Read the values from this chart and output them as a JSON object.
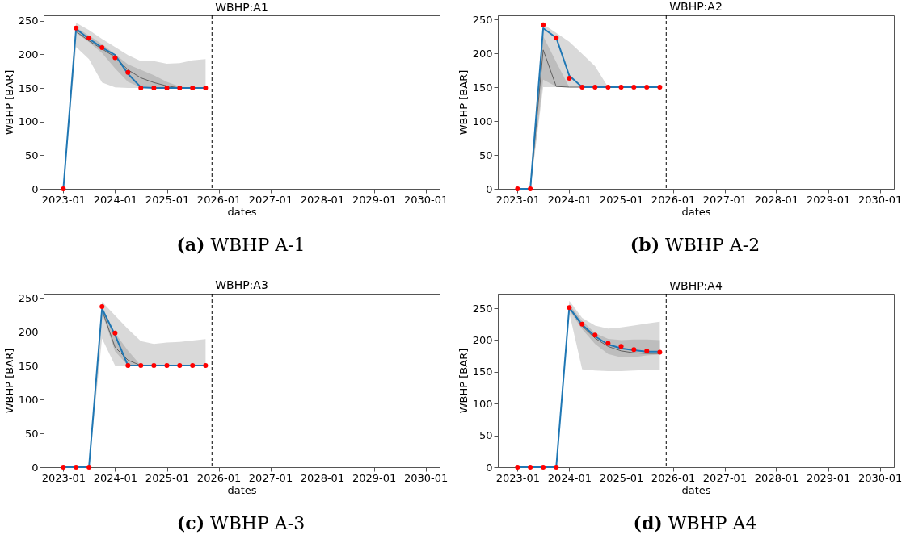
{
  "chart_data": [
    {
      "type": "line",
      "title": "WBHP:A1",
      "xlabel": "dates",
      "ylabel": "WBHP [BAR]",
      "annotations": [
        "(a) WBHP A-1"
      ],
      "x": [
        "2023-01",
        "2023-04",
        "2023-07",
        "2023-10",
        "2024-01",
        "2024-04",
        "2024-07",
        "2024-10",
        "2025-01",
        "2025-04",
        "2025-07",
        "2025-10"
      ],
      "xlim": [
        "2022-08-15",
        "2030-04-10"
      ],
      "xticks": [
        "2023-01",
        "2024-01",
        "2025-01",
        "2026-01",
        "2027-01",
        "2028-01",
        "2029-01",
        "2030-01"
      ],
      "ylim": [
        0,
        258
      ],
      "yticks": [
        0,
        50,
        100,
        150,
        200,
        250
      ],
      "ref_lines": [
        {
          "axis": "x",
          "value": "2025-11-15",
          "color": "#000000",
          "line_style": "dashed"
        }
      ],
      "series": [
        {
          "type": "line",
          "color": "#606060",
          "values": [
            null,
            234,
            220,
            208,
            196,
            177,
            165,
            158,
            153,
            150,
            150,
            150
          ],
          "lower": [
            0,
            232,
            218,
            202,
            179,
            159,
            151,
            150,
            150,
            150,
            150,
            150
          ],
          "upper": [
            0,
            240,
            228,
            215,
            200,
            185,
            177,
            169,
            159,
            152,
            150,
            150
          ]
        },
        {
          "type": "line",
          "color": "#1f77b4",
          "values": [
            0,
            238,
            223,
            210,
            199,
            171,
            151,
            150,
            150,
            150,
            150,
            150
          ],
          "lower": [
            0,
            211,
            193,
            158,
            151,
            150,
            150,
            150,
            150,
            150,
            150,
            150
          ],
          "upper": [
            0,
            247,
            236,
            223,
            211,
            199,
            190,
            190,
            186,
            187,
            191,
            193
          ]
        },
        {
          "type": "scatter",
          "color": "#ff0000",
          "marker": "circle",
          "values": [
            0,
            239,
            224,
            210,
            195,
            173,
            150,
            150,
            150,
            150,
            150,
            150
          ]
        }
      ]
    },
    {
      "type": "line",
      "title": "WBHP:A2",
      "xlabel": "dates",
      "ylabel": "WBHP [BAR]",
      "annotations": [
        "(b) WBHP A-2"
      ],
      "x": [
        "2023-01",
        "2023-04",
        "2023-07",
        "2023-10",
        "2024-01",
        "2024-04",
        "2024-07",
        "2024-10",
        "2025-01",
        "2025-04",
        "2025-07",
        "2025-10"
      ],
      "xlim": [
        "2022-08-15",
        "2030-04-10"
      ],
      "xticks": [
        "2023-01",
        "2024-01",
        "2025-01",
        "2026-01",
        "2027-01",
        "2028-01",
        "2029-01",
        "2030-01"
      ],
      "ylim": [
        0,
        256
      ],
      "yticks": [
        0,
        50,
        100,
        150,
        200,
        250
      ],
      "ref_lines": [
        {
          "axis": "x",
          "value": "2025-11-15",
          "color": "#000000",
          "line_style": "dashed"
        }
      ],
      "series": [
        {
          "type": "line",
          "color": "#606060",
          "values": [
            null,
            0,
            205,
            151,
            150,
            150,
            150,
            150,
            150,
            150,
            null,
            null
          ],
          "lower": [
            null,
            0,
            161,
            151,
            150,
            150,
            150,
            150,
            150,
            150,
            150,
            150
          ],
          "upper": [
            null,
            0,
            225,
            187,
            150,
            150,
            150,
            150,
            150,
            150,
            150,
            150
          ]
        },
        {
          "type": "line",
          "color": "#1f77b4",
          "values": [
            0,
            0,
            237,
            223,
            167,
            150,
            150,
            150,
            150,
            150,
            150,
            150
          ],
          "lower": [
            0,
            0,
            150,
            150,
            150,
            150,
            150,
            150,
            150,
            150,
            150,
            150
          ],
          "upper": [
            0,
            0,
            243,
            230,
            217,
            199,
            181,
            150,
            150,
            150,
            150,
            150
          ]
        },
        {
          "type": "scatter",
          "color": "#ff0000",
          "marker": "circle",
          "values": [
            0,
            0,
            242,
            223,
            163,
            150,
            150,
            150,
            150,
            150,
            150,
            150
          ]
        }
      ]
    },
    {
      "type": "line",
      "title": "WBHP:A3",
      "xlabel": "dates",
      "ylabel": "WBHP [BAR]",
      "annotations": [
        "(c) WBHP A-3"
      ],
      "x": [
        "2023-01",
        "2023-04",
        "2023-07",
        "2023-10",
        "2024-01",
        "2024-04",
        "2024-07",
        "2024-10",
        "2025-01",
        "2025-04",
        "2025-07",
        "2025-10"
      ],
      "xlim": [
        "2022-08-15",
        "2030-04-10"
      ],
      "xticks": [
        "2023-01",
        "2024-01",
        "2025-01",
        "2026-01",
        "2027-01",
        "2028-01",
        "2029-01",
        "2030-01"
      ],
      "ylim": [
        0,
        256
      ],
      "yticks": [
        0,
        50,
        100,
        150,
        200,
        250
      ],
      "ref_lines": [
        {
          "axis": "x",
          "value": "2025-11-15",
          "color": "#000000",
          "line_style": "dashed"
        }
      ],
      "series": [
        {
          "type": "line",
          "color": "#606060",
          "values": [
            null,
            null,
            null,
            232,
            177,
            158,
            150,
            150,
            150,
            150,
            null,
            null
          ],
          "lower": [
            null,
            null,
            null,
            228,
            171,
            150,
            150,
            150,
            150,
            150,
            150,
            150
          ],
          "upper": [
            null,
            null,
            null,
            233,
            198,
            172,
            150,
            150,
            150,
            150,
            150,
            150
          ]
        },
        {
          "type": "line",
          "color": "#1f77b4",
          "values": [
            0,
            0,
            0,
            234,
            195,
            150,
            150,
            150,
            150,
            150,
            150,
            150
          ],
          "lower": [
            0,
            0,
            0,
            190,
            150,
            150,
            150,
            150,
            150,
            150,
            150,
            150
          ],
          "upper": [
            0,
            0,
            0,
            244,
            224,
            204,
            186,
            182,
            184,
            185,
            187,
            189
          ]
        },
        {
          "type": "scatter",
          "color": "#ff0000",
          "marker": "circle",
          "values": [
            0,
            0,
            0,
            237,
            198,
            150,
            150,
            150,
            150,
            150,
            150,
            150
          ]
        }
      ]
    },
    {
      "type": "line",
      "title": "WBHP:A4",
      "xlabel": "dates",
      "ylabel": "WBHP [BAR]",
      "annotations": [
        "(d) WBHP A4"
      ],
      "x": [
        "2023-01",
        "2023-04",
        "2023-07",
        "2023-10",
        "2024-01",
        "2024-04",
        "2024-07",
        "2024-10",
        "2025-01",
        "2025-04",
        "2025-07",
        "2025-10"
      ],
      "xlim": [
        "2022-08-15",
        "2030-04-10"
      ],
      "xticks": [
        "2023-01",
        "2024-01",
        "2025-01",
        "2026-01",
        "2027-01",
        "2028-01",
        "2029-01",
        "2030-01"
      ],
      "ylim": [
        0,
        273
      ],
      "yticks": [
        0,
        50,
        100,
        150,
        200,
        250
      ],
      "ref_lines": [
        {
          "axis": "x",
          "value": "2025-11-15",
          "color": "#000000",
          "line_style": "dashed"
        }
      ],
      "series": [
        {
          "type": "line",
          "color": "#606060",
          "values": [
            null,
            null,
            null,
            null,
            251,
            222,
            203,
            190,
            183,
            180,
            179,
            179
          ],
          "lower": [
            null,
            null,
            null,
            null,
            247,
            217,
            194,
            178,
            173,
            173,
            176,
            177
          ],
          "upper": [
            null,
            null,
            null,
            null,
            256,
            230,
            211,
            202,
            200,
            201,
            201,
            200
          ]
        },
        {
          "type": "line",
          "color": "#1f77b4",
          "values": [
            0,
            0,
            0,
            0,
            251,
            224,
            206,
            193,
            187,
            184,
            182,
            182
          ],
          "lower": [
            0,
            0,
            0,
            0,
            243,
            154,
            152,
            151,
            151,
            152,
            153,
            153
          ],
          "upper": [
            0,
            0,
            0,
            0,
            262,
            235,
            223,
            218,
            220,
            223,
            226,
            229
          ]
        },
        {
          "type": "scatter",
          "color": "#ff0000",
          "marker": "circle",
          "values": [
            0,
            0,
            0,
            0,
            251,
            225,
            208,
            195,
            190,
            185,
            183,
            181
          ]
        }
      ]
    }
  ]
}
